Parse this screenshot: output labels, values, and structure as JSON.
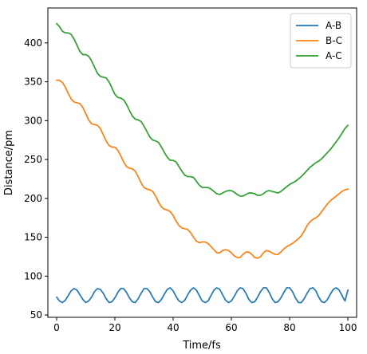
{
  "chart_data": {
    "type": "line",
    "xlabel": "Time/fs",
    "ylabel": "Distance/pm",
    "xlim": [
      -3,
      103
    ],
    "ylim": [
      47,
      445
    ],
    "xticks": [
      0,
      20,
      40,
      60,
      80,
      100
    ],
    "yticks": [
      50,
      100,
      150,
      200,
      250,
      300,
      350,
      400
    ],
    "grid": false,
    "legend_position": "top-right",
    "series": [
      {
        "name": "A-B",
        "color": "#1f77b4",
        "x": [
          0,
          1,
          2,
          3,
          4,
          5,
          6,
          7,
          8,
          9,
          10,
          11,
          12,
          13,
          14,
          15,
          16,
          17,
          18,
          19,
          20,
          21,
          22,
          23,
          24,
          25,
          26,
          27,
          28,
          29,
          30,
          31,
          32,
          33,
          34,
          35,
          36,
          37,
          38,
          39,
          40,
          41,
          42,
          43,
          44,
          45,
          46,
          47,
          48,
          49,
          50,
          51,
          52,
          53,
          54,
          55,
          56,
          57,
          58,
          59,
          60,
          61,
          62,
          63,
          64,
          65,
          66,
          67,
          68,
          69,
          70,
          71,
          72,
          73,
          74,
          75,
          76,
          77,
          78,
          79,
          80,
          81,
          82,
          83,
          84,
          85,
          86,
          87,
          88,
          89,
          90,
          91,
          92,
          93,
          94,
          95,
          96,
          97,
          98,
          99,
          100
        ],
        "y": [
          73,
          68,
          66,
          69,
          75,
          81,
          84,
          82,
          76,
          70,
          66,
          68,
          73,
          80,
          84,
          83,
          78,
          71,
          66,
          67,
          72,
          79,
          84,
          84,
          79,
          72,
          67,
          66,
          71,
          78,
          84,
          84,
          80,
          73,
          67,
          66,
          70,
          77,
          83,
          85,
          81,
          74,
          68,
          66,
          69,
          76,
          82,
          85,
          82,
          75,
          68,
          66,
          68,
          75,
          82,
          85,
          83,
          76,
          69,
          66,
          68,
          74,
          81,
          85,
          84,
          78,
          70,
          66,
          67,
          73,
          80,
          85,
          85,
          79,
          71,
          66,
          67,
          72,
          79,
          85,
          85,
          80,
          72,
          66,
          66,
          71,
          78,
          84,
          85,
          81,
          73,
          67,
          66,
          70,
          77,
          83,
          85,
          82,
          75,
          68,
          82
        ]
      },
      {
        "name": "B-C",
        "color": "#ff7f0e",
        "x": [
          0,
          1,
          2,
          3,
          4,
          5,
          6,
          7,
          8,
          9,
          10,
          11,
          12,
          13,
          14,
          15,
          16,
          17,
          18,
          19,
          20,
          21,
          22,
          23,
          24,
          25,
          26,
          27,
          28,
          29,
          30,
          31,
          32,
          33,
          34,
          35,
          36,
          37,
          38,
          39,
          40,
          41,
          42,
          43,
          44,
          45,
          46,
          47,
          48,
          49,
          50,
          51,
          52,
          53,
          54,
          55,
          56,
          57,
          58,
          59,
          60,
          61,
          62,
          63,
          64,
          65,
          66,
          67,
          68,
          69,
          70,
          71,
          72,
          73,
          74,
          75,
          76,
          77,
          78,
          79,
          80,
          81,
          82,
          83,
          84,
          85,
          86,
          87,
          88,
          89,
          90,
          91,
          92,
          93,
          94,
          95,
          96,
          97,
          98,
          99,
          100
        ],
        "y": [
          352,
          352,
          349,
          343,
          335,
          328,
          324,
          323,
          322,
          317,
          309,
          301,
          296,
          295,
          294,
          290,
          282,
          274,
          268,
          266,
          266,
          262,
          255,
          247,
          241,
          239,
          238,
          235,
          228,
          220,
          214,
          212,
          211,
          209,
          203,
          195,
          189,
          186,
          185,
          183,
          178,
          171,
          165,
          162,
          161,
          160,
          156,
          150,
          145,
          143,
          144,
          144,
          142,
          138,
          134,
          130,
          130,
          133,
          134,
          133,
          130,
          126,
          124,
          124,
          128,
          131,
          131,
          128,
          124,
          123,
          125,
          130,
          133,
          132,
          130,
          128,
          128,
          131,
          135,
          138,
          140,
          142,
          145,
          148,
          152,
          158,
          165,
          170,
          173,
          175,
          178,
          183,
          188,
          193,
          197,
          200,
          203,
          206,
          209,
          211,
          212
        ]
      },
      {
        "name": "A-C",
        "color": "#2ca02c",
        "x": [
          0,
          1,
          2,
          3,
          4,
          5,
          6,
          7,
          8,
          9,
          10,
          11,
          12,
          13,
          14,
          15,
          16,
          17,
          18,
          19,
          20,
          21,
          22,
          23,
          24,
          25,
          26,
          27,
          28,
          29,
          30,
          31,
          32,
          33,
          34,
          35,
          36,
          37,
          38,
          39,
          40,
          41,
          42,
          43,
          44,
          45,
          46,
          47,
          48,
          49,
          50,
          51,
          52,
          53,
          54,
          55,
          56,
          57,
          58,
          59,
          60,
          61,
          62,
          63,
          64,
          65,
          66,
          67,
          68,
          69,
          70,
          71,
          72,
          73,
          74,
          75,
          76,
          77,
          78,
          79,
          80,
          81,
          82,
          83,
          84,
          85,
          86,
          87,
          88,
          89,
          90,
          91,
          92,
          93,
          94,
          95,
          96,
          97,
          98,
          99,
          100
        ],
        "y": [
          425,
          421,
          415,
          413,
          413,
          411,
          405,
          397,
          389,
          385,
          385,
          383,
          377,
          369,
          361,
          357,
          356,
          355,
          350,
          342,
          334,
          330,
          329,
          327,
          321,
          313,
          306,
          302,
          301,
          299,
          293,
          286,
          279,
          275,
          274,
          272,
          266,
          259,
          253,
          249,
          249,
          247,
          241,
          235,
          230,
          228,
          228,
          227,
          222,
          217,
          214,
          214,
          214,
          212,
          209,
          206,
          205,
          207,
          209,
          210,
          210,
          208,
          205,
          203,
          203,
          205,
          207,
          207,
          206,
          204,
          204,
          206,
          209,
          210,
          209,
          208,
          207,
          209,
          212,
          215,
          218,
          220,
          222,
          225,
          228,
          232,
          236,
          240,
          243,
          246,
          248,
          251,
          255,
          259,
          263,
          268,
          273,
          278,
          284,
          290,
          294
        ]
      }
    ]
  }
}
